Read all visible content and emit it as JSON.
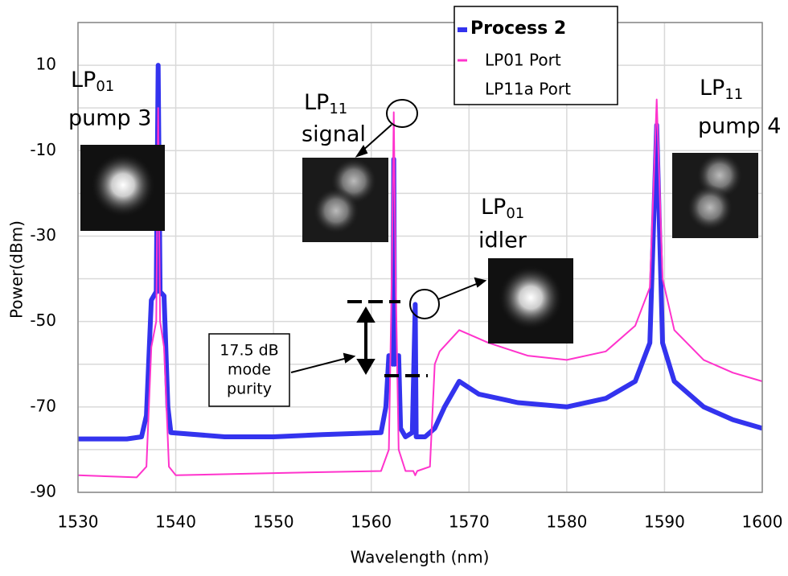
{
  "chart_data": {
    "type": "line",
    "xlabel": "Wavelength (nm)",
    "ylabel": "Power(dBm)",
    "xlim": [
      1530,
      1600
    ],
    "xticks": [
      1530,
      1540,
      1550,
      1560,
      1570,
      1580,
      1590,
      1600
    ],
    "ylim": [
      -90,
      20
    ],
    "yticks": [
      -90,
      -70,
      -50,
      -30,
      -10,
      10
    ],
    "yminor_grid": [
      -80,
      -60,
      -40,
      -20,
      0,
      20
    ],
    "grid": true,
    "legend_title": "Process 2",
    "series": [
      {
        "name": "LP01 Port",
        "color": "#3333ee",
        "x": [
          1530,
          1535,
          1536.5,
          1537,
          1537.5,
          1538,
          1538.2,
          1538.4,
          1538.8,
          1539.2,
          1539.5,
          1545,
          1550,
          1555,
          1561,
          1561.5,
          1561.8,
          1562.2,
          1562.3,
          1562.4,
          1562.8,
          1563,
          1563.5,
          1564.2,
          1564.5,
          1564.6,
          1565.5,
          1566.5,
          1567.5,
          1569,
          1571,
          1575,
          1580,
          1584,
          1587,
          1588.5,
          1589.2,
          1589.8,
          1591,
          1594,
          1597,
          1600
        ],
        "values": [
          -77.5,
          -77.5,
          -77,
          -72,
          -45,
          -43,
          10,
          -43,
          -44,
          -70,
          -76,
          -77,
          -77,
          -76.5,
          -76,
          -70,
          -58,
          -60,
          -12,
          -60,
          -58,
          -75,
          -77,
          -76,
          -46,
          -77,
          -77,
          -75,
          -70,
          -64,
          -67,
          -69,
          -70,
          -68,
          -64,
          -55,
          -4,
          -55,
          -64,
          -70,
          -73,
          -75
        ]
      },
      {
        "name": "LP11a Port",
        "color": "#ff33cc",
        "x": [
          1530,
          1536,
          1537,
          1537.5,
          1538,
          1538.2,
          1538.4,
          1538.8,
          1539.3,
          1540,
          1550,
          1561,
          1561.8,
          1562.1,
          1562.3,
          1562.5,
          1562.8,
          1563.5,
          1564.3,
          1564.5,
          1564.7,
          1566,
          1566.5,
          1567,
          1569,
          1572,
          1576,
          1580,
          1584,
          1587,
          1588.5,
          1589.2,
          1589.8,
          1591,
          1594,
          1597,
          1600
        ],
        "values": [
          -86,
          -86.5,
          -84,
          -56,
          -50,
          0,
          -50,
          -56,
          -84,
          -86,
          -85.5,
          -85,
          -80,
          -40,
          -1,
          -40,
          -80,
          -85,
          -85,
          -86,
          -85,
          -84,
          -60,
          -57,
          -52,
          -55,
          -58,
          -59,
          -57,
          -51,
          -42,
          2,
          -40,
          -52,
          -59,
          -62,
          -64
        ]
      }
    ],
    "annotations": [
      {
        "text": "LP",
        "sub": "01",
        "line2": "pump 3",
        "color": "#3333ee"
      },
      {
        "text": "LP",
        "sub": "11",
        "line2": "signal",
        "color": "#ff33cc"
      },
      {
        "text": "LP",
        "sub": "01",
        "line2": "idler",
        "color": "#3333ee"
      },
      {
        "text": "LP",
        "sub": "11",
        "line2": "pump 4",
        "color": "#ff33cc"
      }
    ],
    "purity_label": [
      "17.5 dB",
      "mode",
      "purity"
    ]
  }
}
